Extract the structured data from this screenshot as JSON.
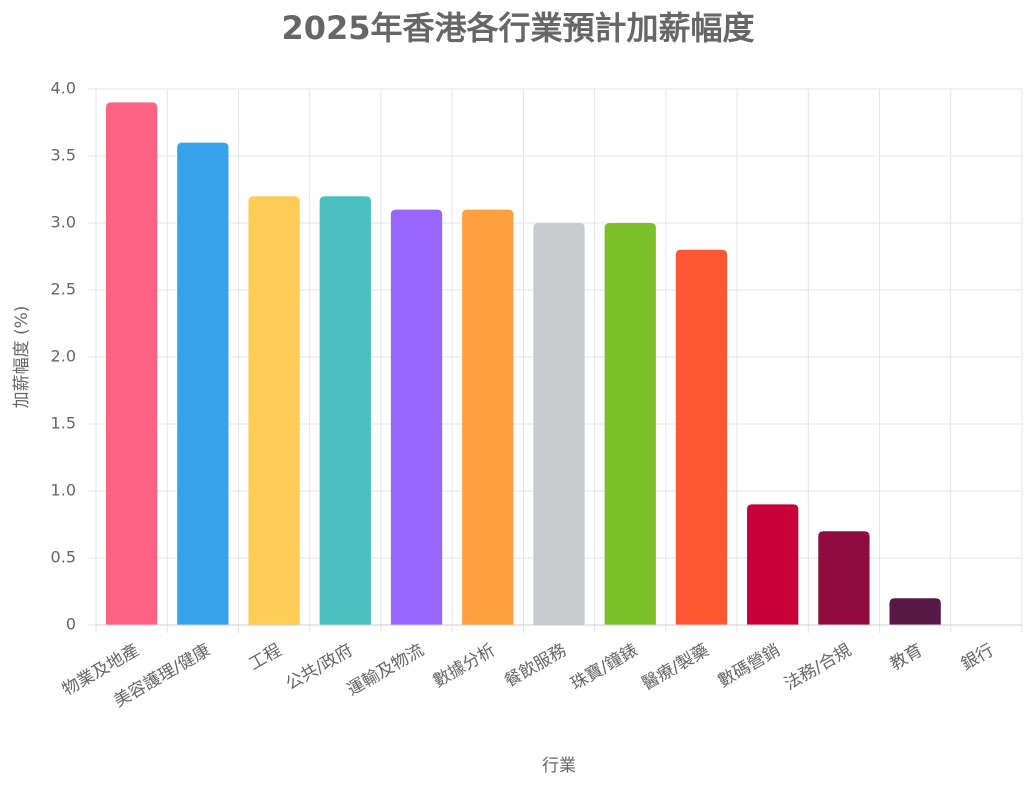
{
  "chart_data": {
    "type": "bar",
    "title": "2025年香港各行業預計加薪幅度",
    "x_label": "行業",
    "y_label": "加薪幅度 (%)",
    "categories": [
      "物業及地產",
      "美容護理/健康",
      "工程",
      "公共/政府",
      "運輸及物流",
      "數據分析",
      "餐飲服務",
      "珠寶/鐘錶",
      "醫療/製藥",
      "數碼營銷",
      "法務/合規",
      "教育",
      "銀行"
    ],
    "values": [
      3.9,
      3.6,
      3.2,
      3.2,
      3.1,
      3.1,
      3.0,
      3.0,
      2.8,
      0.9,
      0.7,
      0.2,
      0
    ],
    "colors": [
      "#ff6384",
      "#36a2eb",
      "#ffcd56",
      "#4bc0c0",
      "#9966ff",
      "#ff9f40",
      "#c9cbcf",
      "#7dc12a",
      "#ff5733",
      "#c70039",
      "#900c3f",
      "#581845",
      "#1abc9c"
    ],
    "ylim": [
      0,
      4
    ],
    "yticks": [
      0,
      0.5,
      {
        "value": 1,
        "label": "1.0"
      },
      1.5,
      {
        "value": 2,
        "label": "2.0"
      },
      2.5,
      {
        "value": 3,
        "label": "3.0"
      },
      3.5,
      {
        "value": 4,
        "label": "4.0"
      }
    ],
    "grid": true
  }
}
